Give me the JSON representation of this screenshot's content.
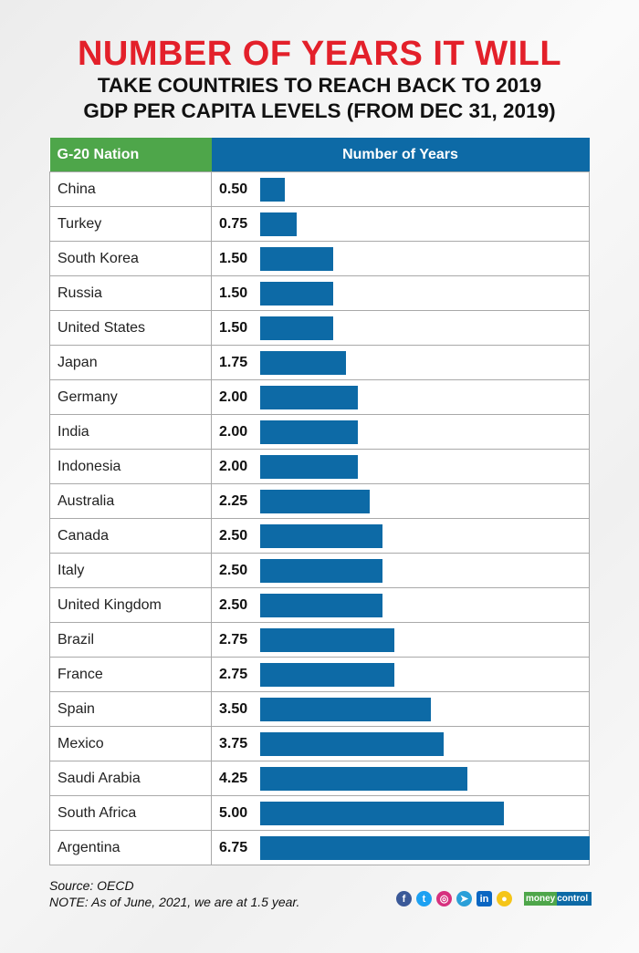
{
  "title_line1": "NUMBER OF YEARS IT WILL",
  "title_line2": "TAKE COUNTRIES TO REACH BACK TO 2019",
  "title_line3": "GDP PER CAPITA LEVELS (FROM DEC 31, 2019)",
  "colors": {
    "title_red": "#e3202a",
    "bar_blue": "#0d6aa6",
    "header_green": "#4ea64a"
  },
  "chart_data": {
    "type": "bar",
    "orientation": "horizontal",
    "column_headers": [
      "G-20 Nation",
      "Number of Years"
    ],
    "categories": [
      "China",
      "Turkey",
      "South Korea",
      "Russia",
      "United States",
      "Japan",
      "Germany",
      "India",
      "Indonesia",
      "Australia",
      "Canada",
      "Italy",
      "United Kingdom",
      "Brazil",
      "France",
      "Spain",
      "Mexico",
      "Saudi Arabia",
      "South Africa",
      "Argentina"
    ],
    "labels": [
      "0.50",
      "0.75",
      "1.50",
      "1.50",
      "1.50",
      "1.75",
      "2.00",
      "2.00",
      "2.00",
      "2.25",
      "2.50",
      "2.50",
      "2.50",
      "2.75",
      "2.75",
      "3.50",
      "3.75",
      "4.25",
      "5.00",
      "6.75"
    ],
    "values": [
      0.5,
      0.75,
      1.5,
      1.5,
      1.5,
      1.75,
      2,
      2,
      2,
      2.25,
      2.5,
      2.5,
      2.5,
      2.75,
      2.75,
      3.5,
      3.75,
      4.25,
      5,
      6.75
    ],
    "xlim": [
      0,
      6.75
    ]
  },
  "footer": {
    "source": "Source: OECD",
    "note": "NOTE: As of June, 2021, we are at 1.5 year.",
    "social_icons": [
      "facebook-icon",
      "twitter-icon",
      "instagram-icon",
      "telegram-icon",
      "linkedin-icon",
      "koo-icon"
    ],
    "logo_part1": "money",
    "logo_part2": "control"
  }
}
